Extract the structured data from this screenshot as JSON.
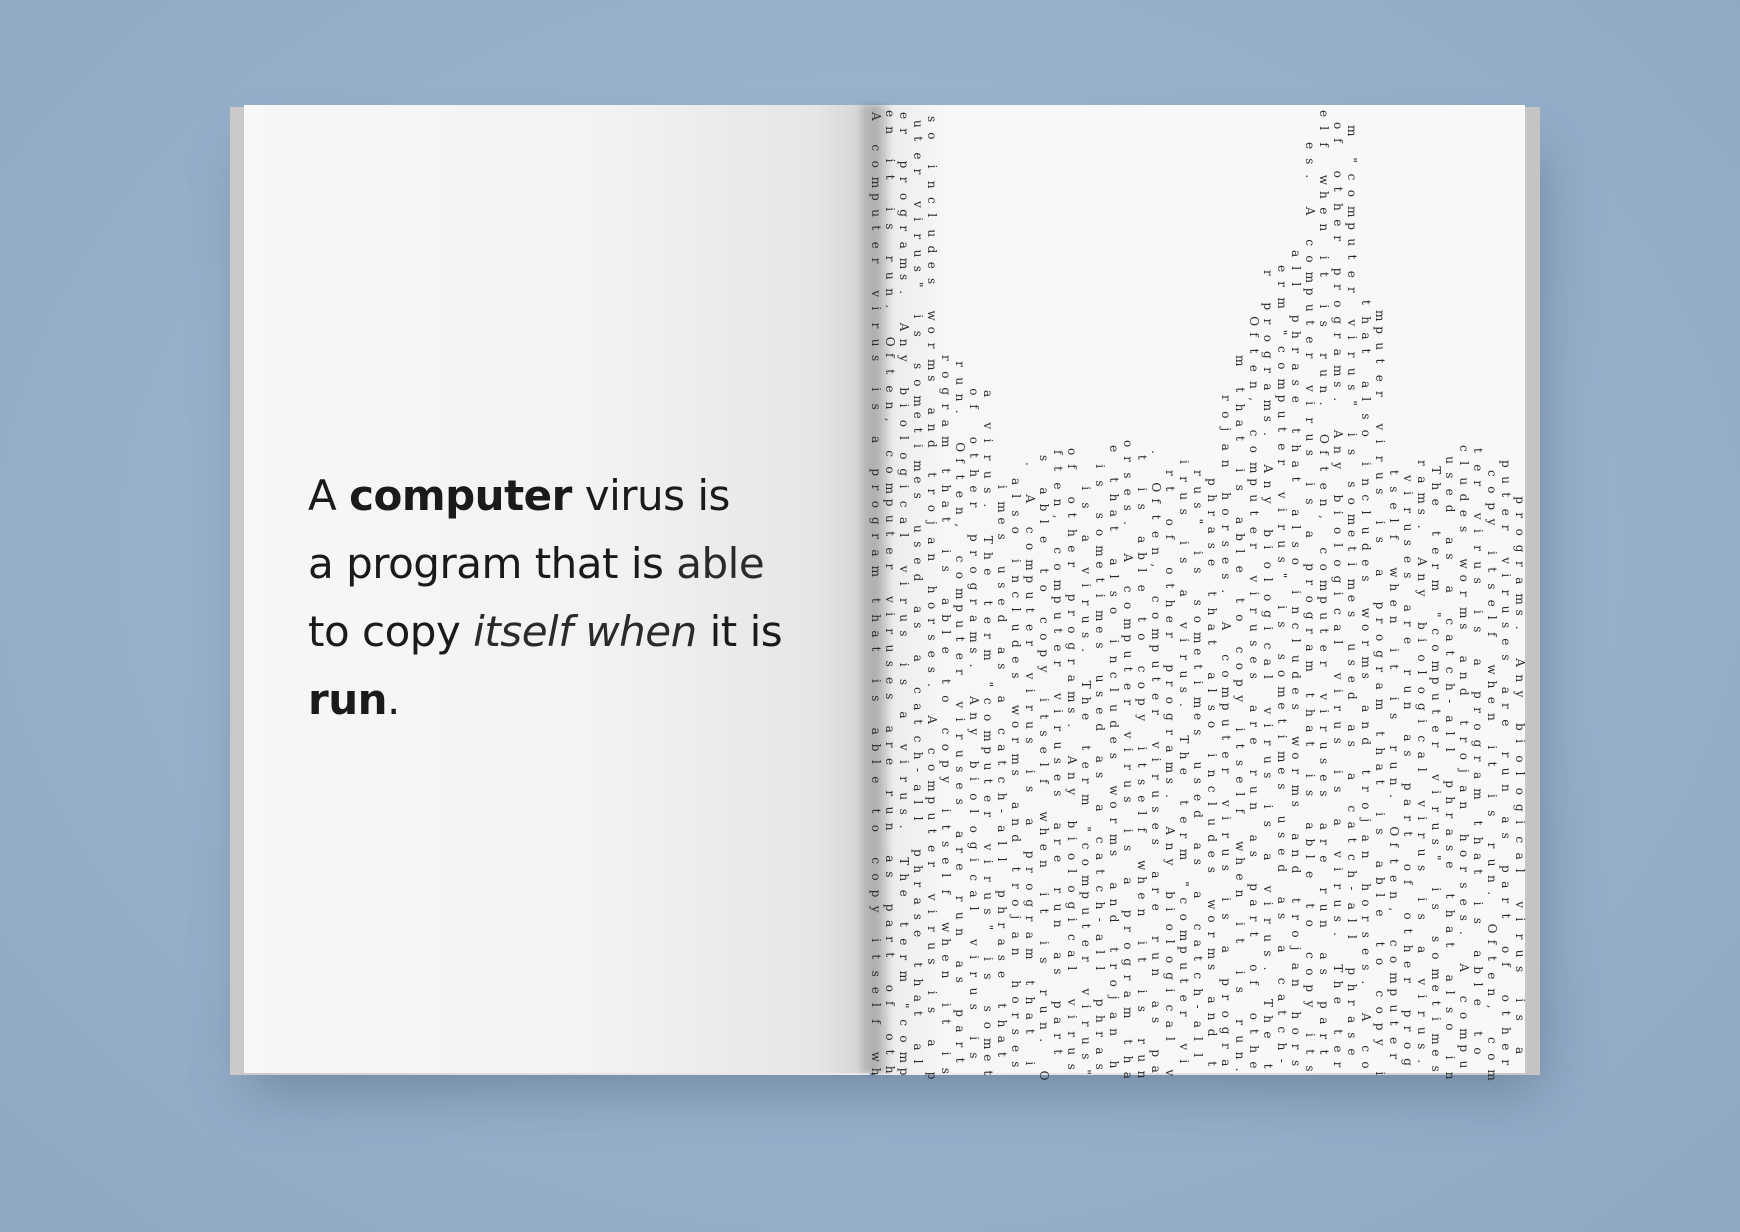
{
  "headline": {
    "segments": [
      {
        "text": "A ",
        "style": "regular"
      },
      {
        "text": "computer",
        "style": "bold"
      },
      {
        "text": " virus is",
        "style": "regular"
      },
      {
        "text": "a program that is ",
        "style": "regular"
      },
      {
        "text": "able",
        "style": "light"
      },
      {
        "text": "to copy ",
        "style": "regular"
      },
      {
        "text": "itself when",
        "style": "italic"
      },
      {
        "text": " it is",
        "style": "regular"
      },
      {
        "text": "run",
        "style": "bold"
      },
      {
        "text": ".",
        "style": "regular"
      }
    ]
  },
  "matrix_text": "A computer virus is a program that is able to copy itself when it is run. Often, computer viruses are run as part of other programs. Any biological virus is a virus. The term \"computer virus\" is sometimes used as a catch-all phrase that also includes worms and trojan horses. "
}
